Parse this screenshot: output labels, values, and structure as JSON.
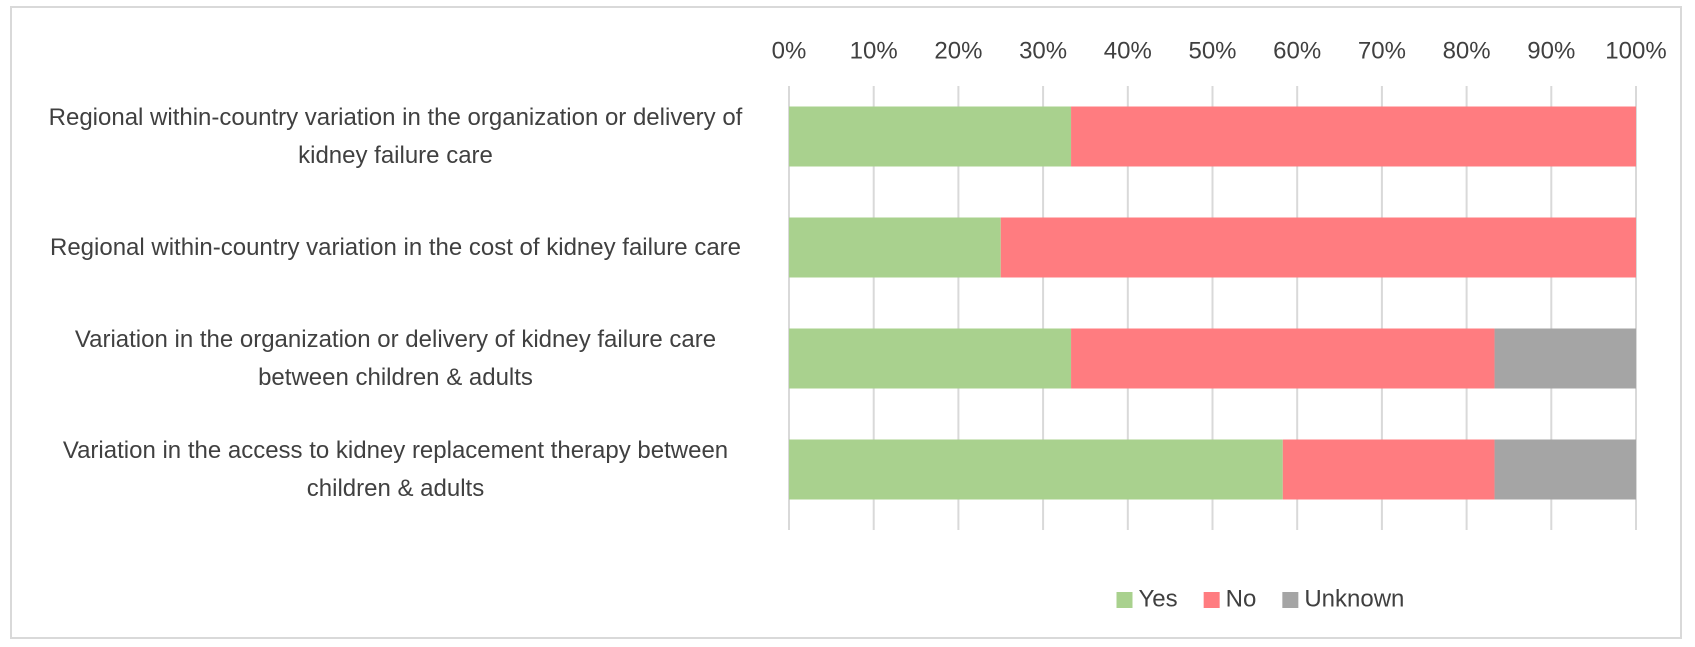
{
  "chart_data": {
    "type": "stacked_bar_horizontal",
    "categories": [
      "Regional within-country variation in the organization or delivery of kidney failure care",
      "Regional within-country variation in the cost of kidney failure care",
      "Variation in the organization or delivery of kidney failure care between children & adults",
      "Variation in the access to kidney replacement therapy between children & adults"
    ],
    "series": [
      {
        "name": "Yes",
        "color": "#a9d18e",
        "values": [
          33.3,
          25,
          33.3,
          58.3
        ]
      },
      {
        "name": "No",
        "color": "#ff7c80",
        "values": [
          66.7,
          75,
          50,
          25
        ]
      },
      {
        "name": "Unknown",
        "color": "#a5a5a5",
        "values": [
          0,
          0,
          16.7,
          16.7
        ]
      }
    ],
    "xlim": [
      0,
      100
    ],
    "xticks": [
      {
        "value": 0,
        "label": "0%"
      },
      {
        "value": 10,
        "label": "10%"
      },
      {
        "value": 20,
        "label": "20%"
      },
      {
        "value": 30,
        "label": "30%"
      },
      {
        "value": 40,
        "label": "40%"
      },
      {
        "value": 50,
        "label": "50%"
      },
      {
        "value": 60,
        "label": "60%"
      },
      {
        "value": 70,
        "label": "70%"
      },
      {
        "value": 80,
        "label": "80%"
      },
      {
        "value": 90,
        "label": "90%"
      },
      {
        "value": 100,
        "label": "100%"
      }
    ],
    "grid": true,
    "legend": "bottom"
  }
}
